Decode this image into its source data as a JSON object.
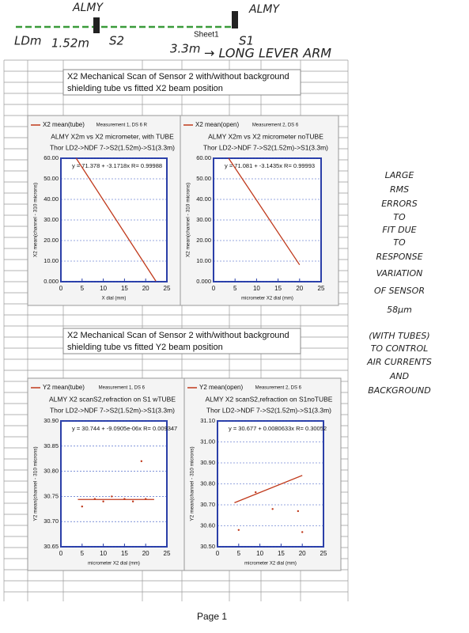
{
  "header": {
    "labels": [
      "ALMY",
      "ALMY",
      "LDm",
      "1.52m",
      "S2",
      "3.3m",
      "S1",
      "→ LONG LEVER ARM"
    ],
    "sheet": "Sheet1"
  },
  "sections": [
    {
      "lines": [
        "X2 Mechanical Scan of Sensor 2 with/without background",
        "shielding tube vs fitted X2  beam position"
      ]
    },
    {
      "lines": [
        "X2 Mechanical Scan of Sensor 2 with/without background",
        "shielding tube vs fitted Y2  beam position"
      ]
    }
  ],
  "chart_data": [
    {
      "type": "line",
      "header": "Measurement 1, DS 6 R",
      "title": "ALMY X2m vs X2 micrometer, with TUBE",
      "subtitle": "Thor LD2->NDF 7->S2(1.52m)->S1(3.3m)",
      "fit": "y = 71.378 + -3.1718x R= 0.99988",
      "ylabel": "X2 mean(channel - 310 microns)",
      "xlabel": "X dial (mm)",
      "xlim": [
        0,
        25
      ],
      "ylim": [
        0,
        60
      ],
      "xticks": [
        0,
        5,
        10,
        15,
        20,
        25
      ],
      "yticks": [
        {
          "value": 0,
          "label": "0.000"
        },
        {
          "value": 10,
          "label": "10.00"
        },
        {
          "value": 20,
          "label": "20.00"
        },
        {
          "value": 30,
          "label": "30.00"
        },
        {
          "value": 40,
          "label": "40.00"
        },
        {
          "value": 50,
          "label": "50.00"
        },
        {
          "value": 60,
          "label": "60.00"
        }
      ],
      "series": [
        {
          "name": "X2 mean(tube)",
          "color": "#c0391b",
          "x": [
            3.6,
            22.4
          ],
          "values": [
            60,
            0.3
          ]
        }
      ]
    },
    {
      "type": "line",
      "header": "Measurement 2, DS 6",
      "title": "ALMY X2m vs X2 micrometer noTUBE",
      "subtitle": "Thor LD2->NDF 7->S2(1.52m)->S1(3.3m)",
      "fit": "y = 71.081 + -3.1435x R= 0.99993",
      "ylabel": "X2 mean(channel - 310 microns)",
      "xlabel": "micrometer X2 dial (mm)",
      "xlim": [
        0,
        25
      ],
      "ylim": [
        0,
        60
      ],
      "xticks": [
        0,
        5,
        10,
        15,
        20,
        25
      ],
      "yticks": [
        {
          "value": 0,
          "label": "0.000"
        },
        {
          "value": 10,
          "label": "10.00"
        },
        {
          "value": 20,
          "label": "20.00"
        },
        {
          "value": 30,
          "label": "30.00"
        },
        {
          "value": 40,
          "label": "40.00"
        },
        {
          "value": 50,
          "label": "50.00"
        },
        {
          "value": 60,
          "label": "60.00"
        }
      ],
      "series": [
        {
          "name": "X2 mean(open)",
          "color": "#c0391b",
          "x": [
            3.5,
            20
          ],
          "values": [
            60,
            8.2
          ]
        }
      ]
    },
    {
      "type": "line",
      "header": "Measurement 1, DS 6",
      "title": "ALMY X2 scanS2,refraction on S1 wTUBE",
      "subtitle": "Thor LD2->NDF 7->S2(1.52m)->S1(3.3m)",
      "fit": "y = 30.744 + -9.0905e-06x R= 0.009347",
      "ylabel": "Y2 mean(channel - 310 microns)",
      "xlabel": "micrometer X2 dial (mm)",
      "xlim": [
        0,
        25
      ],
      "ylim": [
        30.65,
        30.9
      ],
      "xticks": [
        0,
        5,
        10,
        15,
        20,
        25
      ],
      "yticks": [
        {
          "value": 30.65,
          "label": "30.65"
        },
        {
          "value": 30.7,
          "label": "30.70"
        },
        30.75,
        {
          "value": 30.8,
          "label": "30.80"
        },
        30.85,
        {
          "value": 30.9,
          "label": "30.90"
        }
      ],
      "series": [
        {
          "name": "Y2 mean(tube)",
          "color": "#c0391b",
          "x": [
            4,
            22
          ],
          "values": [
            30.744,
            30.744
          ]
        }
      ],
      "markers": {
        "x": [
          5,
          8,
          10,
          12,
          15,
          17,
          20,
          19
        ],
        "values": [
          30.73,
          30.745,
          30.74,
          30.75,
          30.745,
          30.74,
          30.745,
          30.82
        ]
      }
    },
    {
      "type": "line",
      "header": "Measurement 2, DS 6",
      "title": "ALMY X2 scanS2,refraction on S1noTUBE",
      "subtitle": "Thor LD2->NDF 7->S2(1.52m)->S1(3.3m)",
      "fit": "y = 30.677 + 0.0080633x R= 0.30052",
      "ylabel": "Y2 mean(channel - 310 microns)",
      "xlabel": "micrometer X2 dial (mm)",
      "xlim": [
        0,
        25
      ],
      "ylim": [
        30.5,
        31.1
      ],
      "xticks": [
        0,
        5,
        10,
        15,
        20,
        25
      ],
      "yticks": [
        {
          "value": 30.5,
          "label": "30.50"
        },
        {
          "value": 30.6,
          "label": "30.60"
        },
        {
          "value": 30.7,
          "label": "30.70"
        },
        {
          "value": 30.8,
          "label": "30.80"
        },
        {
          "value": 30.9,
          "label": "30.90"
        },
        {
          "value": 31,
          "label": "31.00"
        },
        {
          "value": 31.1,
          "label": "31.10"
        }
      ],
      "series": [
        {
          "name": "Y2 mean(open)",
          "color": "#c0391b",
          "x": [
            4,
            20
          ],
          "values": [
            30.71,
            30.84
          ]
        }
      ],
      "markers": {
        "x": [
          5,
          9,
          13,
          19,
          20
        ],
        "values": [
          30.58,
          30.76,
          30.68,
          30.67,
          30.57
        ]
      }
    }
  ],
  "note": [
    "LARGE",
    "RMS",
    "ERRORS",
    "TO",
    "FIT DUE",
    "TO",
    "RESPONSE",
    "VARIATION",
    "OF SENSOR",
    "58µm",
    "(WITH TUBES)",
    "TO CONTROL",
    "AIR CURRENTS",
    "AND",
    "BACKGROUND"
  ],
  "footer": "Page 1"
}
